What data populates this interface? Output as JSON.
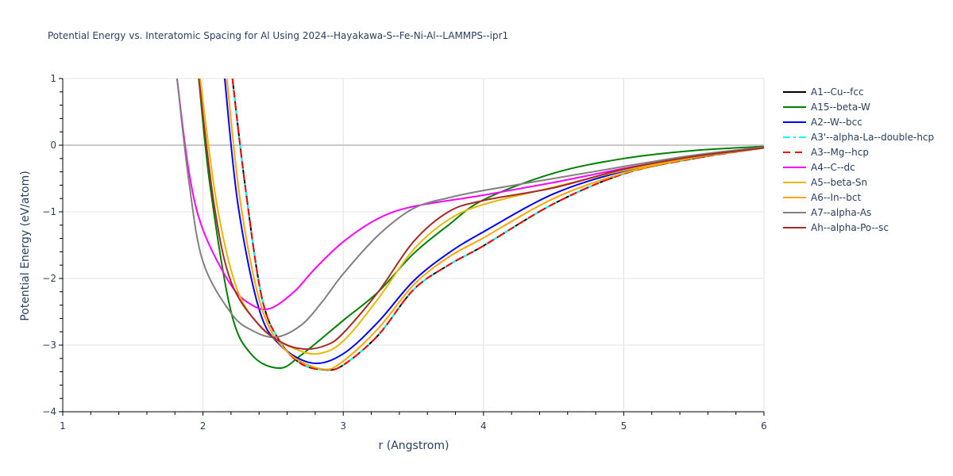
{
  "title": "Potential Energy vs. Interatomic Spacing for Al Using 2024--Hayakawa-S--Fe-Ni-Al--LAMMPS--ipr1",
  "chart_data": {
    "type": "line",
    "title": "Potential Energy vs. Interatomic Spacing for Al Using 2024--Hayakawa-S--Fe-Ni-Al--LAMMPS--ipr1",
    "xlabel": "r (Angstrom)",
    "ylabel": "Potential Energy (eV/atom)",
    "xlim": [
      1,
      6
    ],
    "ylim": [
      -4,
      1
    ],
    "xticks": [
      1,
      2,
      3,
      4,
      5,
      6
    ],
    "yticks": [
      1,
      0,
      -1,
      -2,
      -3,
      -4
    ],
    "grid": true,
    "legend_position": "right",
    "series": [
      {
        "name": "A1--Cu--fcc",
        "color": "#000000",
        "dash": "solid",
        "points": [
          [
            2.21,
            1
          ],
          [
            2.3,
            -0.6
          ],
          [
            2.42,
            -2.29
          ],
          [
            2.55,
            -2.95
          ],
          [
            2.7,
            -3.28
          ],
          [
            2.87,
            -3.37
          ],
          [
            3.0,
            -3.3
          ],
          [
            3.25,
            -2.85
          ],
          [
            3.5,
            -2.17
          ],
          [
            3.75,
            -1.8
          ],
          [
            4.0,
            -1.51
          ],
          [
            4.5,
            -0.88
          ],
          [
            5.0,
            -0.43
          ],
          [
            5.5,
            -0.2
          ],
          [
            6.0,
            -0.04
          ]
        ]
      },
      {
        "name": "A15--beta-W",
        "color": "#008000",
        "dash": "solid",
        "points": [
          [
            1.97,
            1
          ],
          [
            2.05,
            -0.6
          ],
          [
            2.2,
            -2.5
          ],
          [
            2.35,
            -3.15
          ],
          [
            2.545,
            -3.345
          ],
          [
            2.7,
            -3.15
          ],
          [
            3.0,
            -2.63
          ],
          [
            3.25,
            -2.2
          ],
          [
            3.5,
            -1.63
          ],
          [
            3.75,
            -1.2
          ],
          [
            4.0,
            -0.82
          ],
          [
            4.5,
            -0.42
          ],
          [
            5.0,
            -0.2
          ],
          [
            5.5,
            -0.08
          ],
          [
            6.0,
            -0.02
          ]
        ]
      },
      {
        "name": "A2--W--bcc",
        "color": "#0000ff",
        "dash": "solid",
        "points": [
          [
            2.155,
            1
          ],
          [
            2.25,
            -0.9
          ],
          [
            2.4,
            -2.46
          ],
          [
            2.55,
            -3.0
          ],
          [
            2.78,
            -3.27
          ],
          [
            3.0,
            -3.13
          ],
          [
            3.25,
            -2.65
          ],
          [
            3.5,
            -2.04
          ],
          [
            3.75,
            -1.62
          ],
          [
            4.0,
            -1.3
          ],
          [
            4.5,
            -0.73
          ],
          [
            5.0,
            -0.39
          ],
          [
            5.5,
            -0.18
          ],
          [
            6.0,
            -0.04
          ]
        ]
      },
      {
        "name": "A3'--alpha-La--double-hcp",
        "color": "#00ffff",
        "dash": "dashdot",
        "points": [
          [
            2.21,
            1
          ],
          [
            2.3,
            -0.6
          ],
          [
            2.42,
            -2.29
          ],
          [
            2.55,
            -2.95
          ],
          [
            2.7,
            -3.28
          ],
          [
            2.87,
            -3.37
          ],
          [
            3.0,
            -3.3
          ],
          [
            3.25,
            -2.85
          ],
          [
            3.5,
            -2.17
          ],
          [
            3.75,
            -1.8
          ],
          [
            4.0,
            -1.51
          ],
          [
            4.5,
            -0.88
          ],
          [
            5.0,
            -0.43
          ],
          [
            5.5,
            -0.2
          ],
          [
            6.0,
            -0.04
          ]
        ]
      },
      {
        "name": "A3--Mg--hcp",
        "color": "#ff0000",
        "dash": "dash",
        "points": [
          [
            2.21,
            1
          ],
          [
            2.3,
            -0.6
          ],
          [
            2.42,
            -2.29
          ],
          [
            2.55,
            -2.95
          ],
          [
            2.7,
            -3.28
          ],
          [
            2.87,
            -3.37
          ],
          [
            3.0,
            -3.3
          ],
          [
            3.25,
            -2.85
          ],
          [
            3.5,
            -2.17
          ],
          [
            3.75,
            -1.8
          ],
          [
            4.0,
            -1.51
          ],
          [
            4.5,
            -0.88
          ],
          [
            5.0,
            -0.43
          ],
          [
            5.5,
            -0.2
          ],
          [
            6.0,
            -0.04
          ]
        ]
      },
      {
        "name": "A4--C--dc",
        "color": "#ff00ff",
        "dash": "solid",
        "points": [
          [
            1.815,
            1
          ],
          [
            1.9,
            -0.4
          ],
          [
            2.0,
            -1.27
          ],
          [
            2.2,
            -2.1
          ],
          [
            2.35,
            -2.4
          ],
          [
            2.48,
            -2.45
          ],
          [
            2.65,
            -2.2
          ],
          [
            2.8,
            -1.85
          ],
          [
            3.0,
            -1.45
          ],
          [
            3.25,
            -1.1
          ],
          [
            3.5,
            -0.92
          ],
          [
            4.0,
            -0.75
          ],
          [
            4.5,
            -0.56
          ],
          [
            5.0,
            -0.35
          ],
          [
            5.5,
            -0.17
          ],
          [
            6.0,
            -0.03
          ]
        ]
      },
      {
        "name": "A5--beta-Sn",
        "color": "#e6b800",
        "dash": "solid",
        "points": [
          [
            1.98,
            1
          ],
          [
            2.1,
            -0.9
          ],
          [
            2.25,
            -2.2
          ],
          [
            2.45,
            -2.8
          ],
          [
            2.65,
            -3.05
          ],
          [
            2.82,
            -3.13
          ],
          [
            3.0,
            -2.94
          ],
          [
            3.25,
            -2.3
          ],
          [
            3.5,
            -1.57
          ],
          [
            3.75,
            -1.12
          ],
          [
            4.0,
            -0.89
          ],
          [
            4.5,
            -0.63
          ],
          [
            5.0,
            -0.38
          ],
          [
            5.5,
            -0.18
          ],
          [
            6.0,
            -0.04
          ]
        ]
      },
      {
        "name": "A6--In--bct",
        "color": "#ffa500",
        "dash": "solid",
        "points": [
          [
            2.17,
            1
          ],
          [
            2.27,
            -0.9
          ],
          [
            2.42,
            -2.45
          ],
          [
            2.6,
            -3.1
          ],
          [
            2.85,
            -3.36
          ],
          [
            3.0,
            -3.24
          ],
          [
            3.25,
            -2.75
          ],
          [
            3.5,
            -2.1
          ],
          [
            3.75,
            -1.68
          ],
          [
            4.0,
            -1.39
          ],
          [
            4.5,
            -0.8
          ],
          [
            5.0,
            -0.42
          ],
          [
            5.5,
            -0.19
          ],
          [
            6.0,
            -0.04
          ]
        ]
      },
      {
        "name": "A7--alpha-As",
        "color": "#808080",
        "dash": "solid",
        "points": [
          [
            1.815,
            1
          ],
          [
            1.9,
            -0.55
          ],
          [
            2.0,
            -1.75
          ],
          [
            2.2,
            -2.52
          ],
          [
            2.35,
            -2.78
          ],
          [
            2.52,
            -2.88
          ],
          [
            2.7,
            -2.7
          ],
          [
            2.85,
            -2.35
          ],
          [
            3.0,
            -1.93
          ],
          [
            3.25,
            -1.35
          ],
          [
            3.5,
            -0.95
          ],
          [
            3.75,
            -0.79
          ],
          [
            4.0,
            -0.68
          ],
          [
            4.5,
            -0.5
          ],
          [
            5.0,
            -0.32
          ],
          [
            5.5,
            -0.15
          ],
          [
            6.0,
            -0.03
          ]
        ]
      },
      {
        "name": "Ah--alpha-Po--sc",
        "color": "#a52a2a",
        "dash": "solid",
        "points": [
          [
            1.97,
            1
          ],
          [
            2.08,
            -0.9
          ],
          [
            2.2,
            -2.05
          ],
          [
            2.4,
            -2.7
          ],
          [
            2.58,
            -2.98
          ],
          [
            2.73,
            -3.06
          ],
          [
            2.88,
            -3.0
          ],
          [
            3.0,
            -2.82
          ],
          [
            3.25,
            -2.2
          ],
          [
            3.5,
            -1.45
          ],
          [
            3.75,
            -1.0
          ],
          [
            4.0,
            -0.83
          ],
          [
            4.5,
            -0.64
          ],
          [
            5.0,
            -0.36
          ],
          [
            5.5,
            -0.17
          ],
          [
            6.0,
            -0.04
          ]
        ]
      }
    ]
  }
}
